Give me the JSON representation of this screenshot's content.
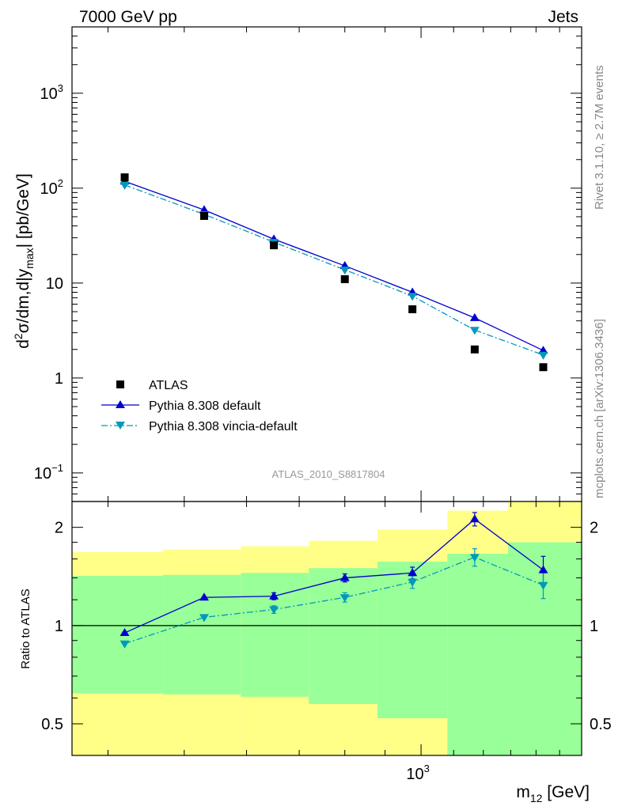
{
  "header": {
    "left": "7000 GeV pp",
    "right": "Jets",
    "side_top": "Rivet 3.1.10, ≥ 2.7M events",
    "side_bottom": "mcplots.cern.ch [arXiv:1306.3436]",
    "analysis": "ATLAS_2010_S8817804"
  },
  "colors": {
    "atlas": "#000000",
    "default": "#0000cc",
    "vincia": "#0099bb",
    "band_inner": "#99ff99",
    "band_outer": "#ffff88"
  },
  "chart_data": [
    {
      "type": "scatter",
      "panel": "main",
      "ylabel_parts": {
        "d": "d",
        "sup": "2",
        "body": "σ/dm,d|y",
        "sub": "max",
        "tail": "| [pb/GeV]"
      },
      "yscale": "log",
      "ylim": [
        0.05,
        5000
      ],
      "xscale": "log",
      "xlim": [
        360,
        1600
      ],
      "y_ticks": [
        {
          "value": 0.1,
          "base": "10",
          "exp": "−1"
        },
        {
          "value": 1,
          "base": "1",
          "exp": ""
        },
        {
          "value": 10,
          "base": "10",
          "exp": ""
        },
        {
          "value": 100,
          "base": "10",
          "exp": "2"
        },
        {
          "value": 1000,
          "base": "10",
          "exp": "3"
        }
      ],
      "legend_position": "middle-left",
      "series": [
        {
          "name": "ATLAS",
          "marker": "square",
          "x": [
            420,
            530,
            650,
            800,
            975,
            1170,
            1430
          ],
          "values": [
            130,
            51,
            25,
            11,
            5.3,
            2.0,
            1.3
          ]
        },
        {
          "name": "Pythia 8.308 default",
          "marker": "triangle-up",
          "line": "solid",
          "x": [
            420,
            530,
            650,
            800,
            975,
            1170,
            1430
          ],
          "values": [
            118,
            59,
            29,
            15.2,
            8.0,
            4.3,
            1.95
          ]
        },
        {
          "name": "Pythia 8.308 vincia-default",
          "marker": "triangle-down",
          "line": "dashdot",
          "x": [
            420,
            530,
            650,
            800,
            975,
            1170,
            1430
          ],
          "values": [
            108,
            53,
            27,
            13.8,
            7.3,
            3.2,
            1.75
          ]
        }
      ]
    },
    {
      "type": "scatter",
      "panel": "ratio",
      "ylabel": "Ratio to ATLAS",
      "xlabel_parts": {
        "base": "m",
        "sub": "12",
        "tail": " [GeV]"
      },
      "yscale": "log",
      "ylim": [
        0.4,
        2.4
      ],
      "y_ticks": [
        0.5,
        1,
        2
      ],
      "x_ticks": [
        {
          "value": 1000,
          "base": "10",
          "exp": "3"
        }
      ],
      "reference_line": 1,
      "bins": [
        {
          "lo": 360,
          "hi": 470,
          "inner": [
            0.73,
            1.42
          ],
          "outer": [
            0.43,
            1.68
          ]
        },
        {
          "lo": 470,
          "hi": 590,
          "inner": [
            0.73,
            1.43
          ],
          "outer": [
            0.43,
            1.71
          ]
        },
        {
          "lo": 590,
          "hi": 720,
          "inner": [
            0.73,
            1.45
          ],
          "outer": [
            0.43,
            1.75
          ]
        },
        {
          "lo": 720,
          "hi": 880,
          "inner": [
            0.73,
            1.5
          ],
          "outer": [
            0.43,
            1.82
          ]
        },
        {
          "lo": 880,
          "hi": 1080,
          "inner": [
            0.73,
            1.57
          ],
          "outer": [
            0.43,
            1.97
          ]
        },
        {
          "lo": 1080,
          "hi": 1290,
          "inner": [
            0.73,
            1.66
          ],
          "outer": [
            0.43,
            2.25
          ]
        },
        {
          "lo": 1290,
          "hi": 1600,
          "inner": [
            0.73,
            1.8
          ],
          "outer": [
            0.43,
            2.4
          ]
        }
      ],
      "band_lower": [
        {
          "lo": 360,
          "hi": 470,
          "inner_low": 0.77,
          "outer_low": 0.62
        },
        {
          "lo": 470,
          "hi": 590,
          "inner_low": 0.77,
          "outer_low": 0.615
        },
        {
          "lo": 590,
          "hi": 720,
          "inner_low": 0.77,
          "outer_low": 0.605
        },
        {
          "lo": 720,
          "hi": 880,
          "inner_low": 0.77,
          "outer_low": 0.575
        },
        {
          "lo": 880,
          "hi": 1080,
          "inner_low": 0.77,
          "outer_low": 0.52
        },
        {
          "lo": 1080,
          "hi": 1290,
          "inner_low": 0.77,
          "outer_low": 0.4
        },
        {
          "lo": 1290,
          "hi": 1600,
          "inner_low": 0.77,
          "outer_low": 0.4
        }
      ],
      "series": [
        {
          "name": "Pythia 8.308 default",
          "x": [
            420,
            530,
            650,
            800,
            975,
            1170,
            1430
          ],
          "values": [
            0.95,
            1.22,
            1.23,
            1.4,
            1.45,
            2.12,
            1.48
          ],
          "err": [
            0,
            0,
            0.03,
            0.04,
            0.06,
            0.1,
            0.15
          ]
        },
        {
          "name": "Pythia 8.308 vincia-default",
          "x": [
            420,
            530,
            650,
            800,
            975,
            1170,
            1430
          ],
          "values": [
            0.88,
            1.06,
            1.12,
            1.22,
            1.36,
            1.62,
            1.33
          ],
          "err": [
            0,
            0,
            0.03,
            0.04,
            0.06,
            0.1,
            0.12
          ]
        }
      ]
    }
  ]
}
